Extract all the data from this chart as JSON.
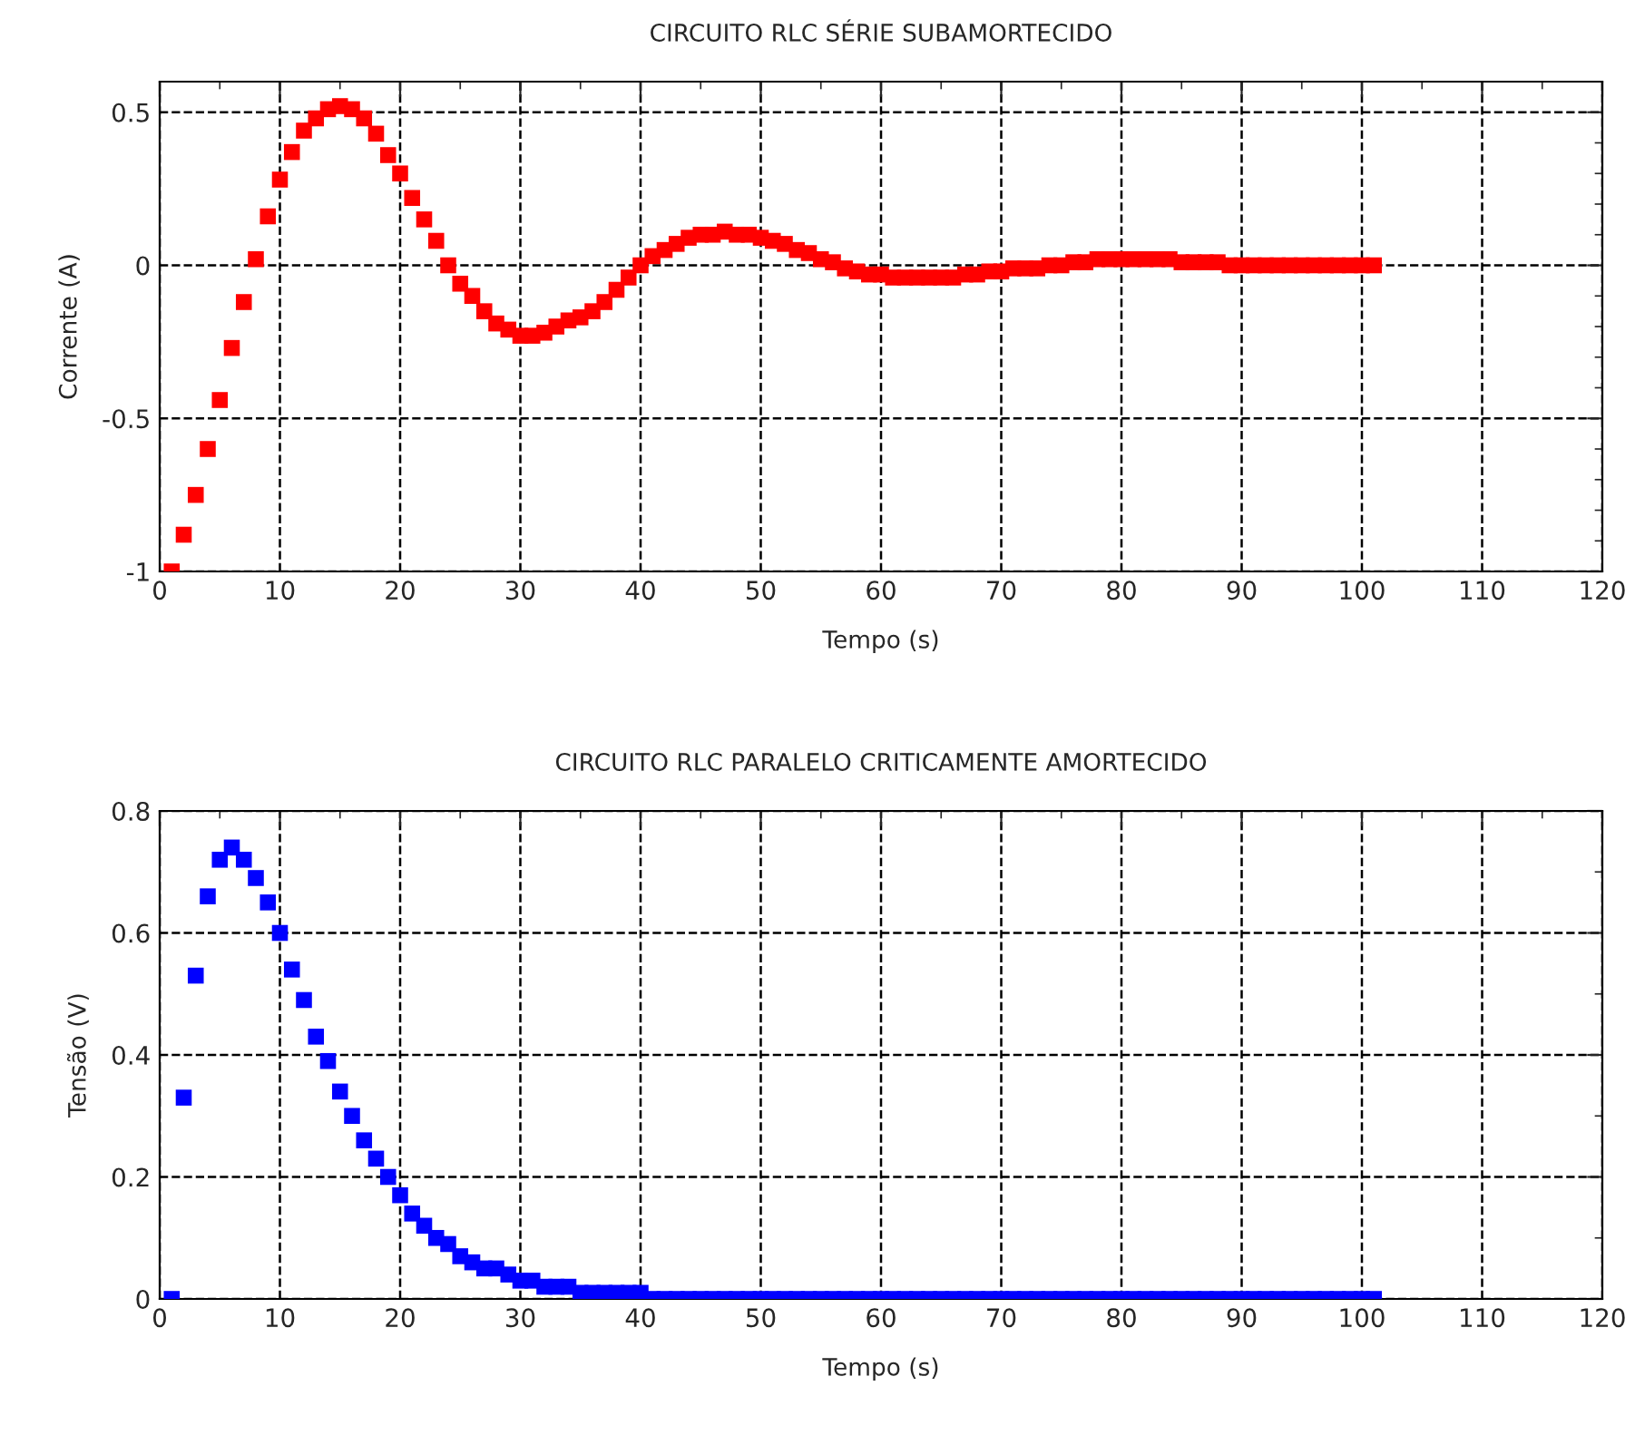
{
  "chart_data": [
    {
      "type": "scatter",
      "title": "CIRCUITO RLC SÉRIE SUBAMORTECIDO",
      "xlabel": "Tempo (s)",
      "ylabel": "Corrente (A)",
      "marker": "square",
      "grid": true,
      "line_style": "dashed",
      "xlim": [
        0,
        120
      ],
      "xticks": [
        0,
        10,
        20,
        30,
        40,
        50,
        60,
        70,
        80,
        90,
        100,
        110,
        120
      ],
      "ylim": [
        -1,
        0.6
      ],
      "yticks": [
        -1,
        -0.5,
        0,
        0.5
      ],
      "series": [
        {
          "color": "#ff0000",
          "x": [
            1,
            2,
            3,
            4,
            5,
            6,
            7,
            8,
            9,
            10,
            11,
            12,
            13,
            14,
            15,
            16,
            17,
            18,
            19,
            20,
            21,
            22,
            23,
            24,
            25,
            26,
            27,
            28,
            29,
            30,
            31,
            32,
            33,
            34,
            35,
            36,
            37,
            38,
            39,
            40,
            41,
            42,
            43,
            44,
            45,
            46,
            47,
            48,
            49,
            50,
            51,
            52,
            53,
            54,
            55,
            56,
            57,
            58,
            59,
            60,
            61,
            62,
            63,
            64,
            65,
            66,
            67,
            68,
            69,
            70,
            71,
            72,
            73,
            74,
            75,
            76,
            77,
            78,
            79,
            80,
            81,
            82,
            83,
            84,
            85,
            86,
            87,
            88,
            89,
            90,
            91,
            92,
            93,
            94,
            95,
            96,
            97,
            98,
            99,
            100,
            101
          ],
          "values": [
            -1.0,
            -0.88,
            -0.75,
            -0.6,
            -0.44,
            -0.27,
            -0.12,
            0.02,
            0.16,
            0.28,
            0.37,
            0.44,
            0.48,
            0.51,
            0.52,
            0.51,
            0.48,
            0.43,
            0.36,
            0.3,
            0.22,
            0.15,
            0.08,
            0.0,
            -0.06,
            -0.1,
            -0.15,
            -0.19,
            -0.21,
            -0.23,
            -0.23,
            -0.22,
            -0.2,
            -0.18,
            -0.17,
            -0.15,
            -0.12,
            -0.08,
            -0.04,
            0.0,
            0.03,
            0.05,
            0.07,
            0.09,
            0.1,
            0.1,
            0.11,
            0.1,
            0.1,
            0.09,
            0.08,
            0.07,
            0.05,
            0.04,
            0.02,
            0.01,
            -0.01,
            -0.02,
            -0.03,
            -0.03,
            -0.04,
            -0.04,
            -0.04,
            -0.04,
            -0.04,
            -0.04,
            -0.03,
            -0.03,
            -0.02,
            -0.02,
            -0.01,
            -0.01,
            -0.01,
            0.0,
            0.0,
            0.01,
            0.01,
            0.02,
            0.02,
            0.02,
            0.02,
            0.02,
            0.02,
            0.02,
            0.01,
            0.01,
            0.01,
            0.01,
            0.0,
            0.0,
            0.0,
            0.0,
            0.0,
            0.0,
            0.0,
            0.0,
            0.0,
            0.0,
            0.0,
            0.0,
            0.0
          ]
        }
      ]
    },
    {
      "type": "scatter",
      "title": "CIRCUITO RLC PARALELO CRITICAMENTE AMORTECIDO",
      "xlabel": "Tempo (s)",
      "ylabel": "Tensão (V)",
      "marker": "square",
      "grid": true,
      "line_style": "dashed",
      "xlim": [
        0,
        120
      ],
      "xticks": [
        0,
        10,
        20,
        30,
        40,
        50,
        60,
        70,
        80,
        90,
        100,
        110,
        120
      ],
      "ylim": [
        0,
        0.8
      ],
      "yticks": [
        0,
        0.2,
        0.4,
        0.6,
        0.8
      ],
      "series": [
        {
          "color": "#0000ff",
          "x": [
            1,
            2,
            3,
            4,
            5,
            6,
            7,
            8,
            9,
            10,
            11,
            12,
            13,
            14,
            15,
            16,
            17,
            18,
            19,
            20,
            21,
            22,
            23,
            24,
            25,
            26,
            27,
            28,
            29,
            30,
            31,
            32,
            33,
            34,
            35,
            36,
            37,
            38,
            39,
            40,
            41,
            42,
            43,
            44,
            45,
            46,
            47,
            48,
            49,
            50,
            51,
            52,
            53,
            54,
            55,
            56,
            57,
            58,
            59,
            60,
            61,
            62,
            63,
            64,
            65,
            66,
            67,
            68,
            69,
            70,
            71,
            72,
            73,
            74,
            75,
            76,
            77,
            78,
            79,
            80,
            81,
            82,
            83,
            84,
            85,
            86,
            87,
            88,
            89,
            90,
            91,
            92,
            93,
            94,
            95,
            96,
            97,
            98,
            99,
            100,
            101
          ],
          "values": [
            0.0,
            0.33,
            0.53,
            0.66,
            0.72,
            0.74,
            0.72,
            0.69,
            0.65,
            0.6,
            0.54,
            0.49,
            0.43,
            0.39,
            0.34,
            0.3,
            0.26,
            0.23,
            0.2,
            0.17,
            0.14,
            0.12,
            0.1,
            0.09,
            0.07,
            0.06,
            0.05,
            0.05,
            0.04,
            0.03,
            0.03,
            0.02,
            0.02,
            0.02,
            0.01,
            0.01,
            0.01,
            0.01,
            0.01,
            0.01,
            0.0,
            0.0,
            0.0,
            0.0,
            0.0,
            0.0,
            0.0,
            0.0,
            0.0,
            0.0,
            0.0,
            0.0,
            0.0,
            0.0,
            0.0,
            0.0,
            0.0,
            0.0,
            0.0,
            0.0,
            0.0,
            0.0,
            0.0,
            0.0,
            0.0,
            0.0,
            0.0,
            0.0,
            0.0,
            0.0,
            0.0,
            0.0,
            0.0,
            0.0,
            0.0,
            0.0,
            0.0,
            0.0,
            0.0,
            0.0,
            0.0,
            0.0,
            0.0,
            0.0,
            0.0,
            0.0,
            0.0,
            0.0,
            0.0,
            0.0,
            0.0,
            0.0,
            0.0,
            0.0,
            0.0,
            0.0,
            0.0,
            0.0,
            0.0,
            0.0,
            0.0
          ]
        }
      ]
    }
  ]
}
